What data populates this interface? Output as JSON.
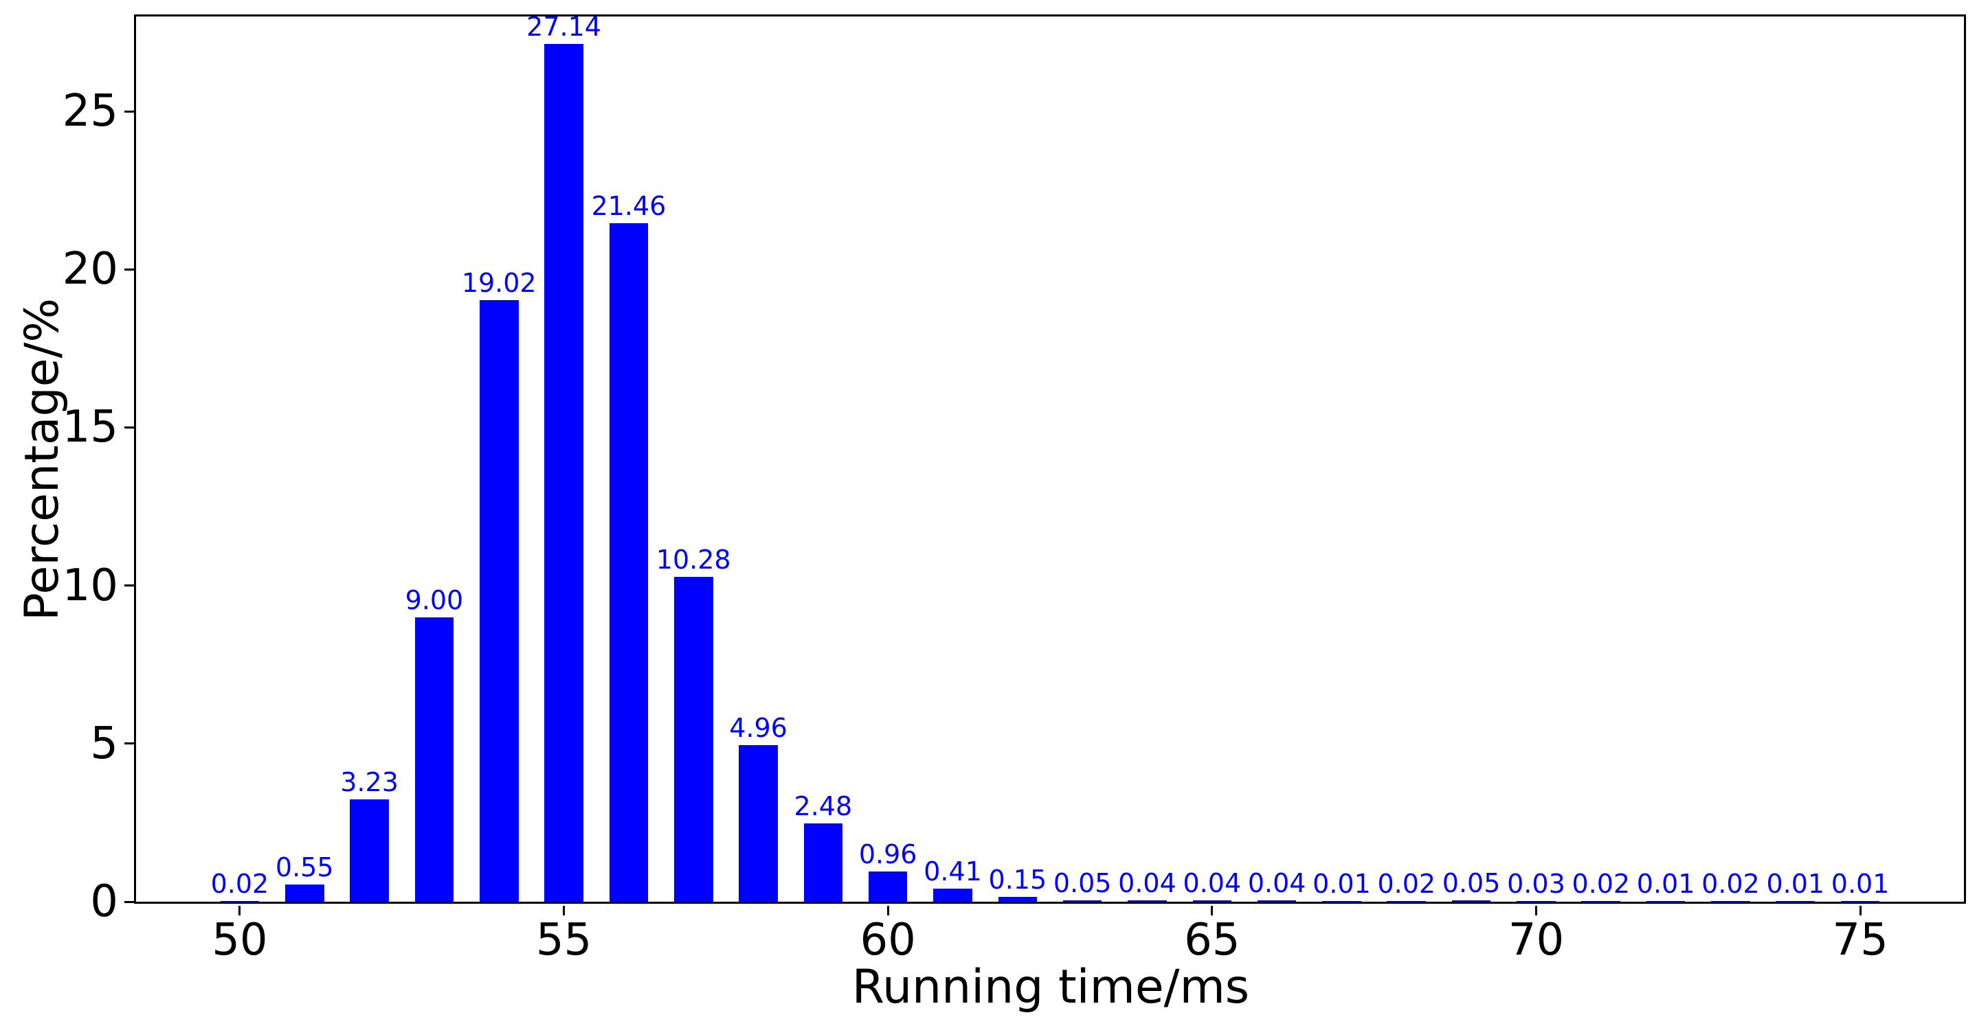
{
  "chart_data": {
    "type": "bar",
    "title": "",
    "xlabel": "Running time/ms",
    "ylabel": "Percentage/%",
    "x": [
      50,
      51,
      52,
      53,
      54,
      55,
      56,
      57,
      58,
      59,
      60,
      61,
      62,
      63,
      64,
      65,
      66,
      67,
      68,
      69,
      70,
      71,
      72,
      73,
      74,
      75
    ],
    "values": [
      0.02,
      0.55,
      3.23,
      9.0,
      19.02,
      27.14,
      21.46,
      10.28,
      4.96,
      2.48,
      0.96,
      0.41,
      0.15,
      0.05,
      0.04,
      0.04,
      0.04,
      0.01,
      0.02,
      0.05,
      0.03,
      0.02,
      0.01,
      0.02,
      0.01,
      0.01
    ],
    "bar_labels": [
      "0.02",
      "0.55",
      "3.23",
      "9.00",
      "19.02",
      "27.14",
      "21.46",
      "10.28",
      "4.96",
      "2.48",
      "0.96",
      "0.41",
      "0.15",
      "0.05",
      "0.04",
      "0.04",
      "0.04",
      "0.01",
      "0.02",
      "0.05",
      "0.03",
      "0.02",
      "0.01",
      "0.02",
      "0.01",
      "0.01"
    ],
    "xticks": [
      50,
      55,
      60,
      65,
      70,
      75
    ],
    "yticks": [
      0,
      5,
      10,
      15,
      20,
      25
    ],
    "xlim": [
      48.4,
      76.6
    ],
    "ylim": [
      0,
      28.0
    ],
    "bar_width": 0.6,
    "grid": false,
    "legend": null,
    "colors": {
      "bar": "#0000ff",
      "bar_label": "#0000ff",
      "axis": "#000000",
      "background": "#ffffff"
    }
  }
}
